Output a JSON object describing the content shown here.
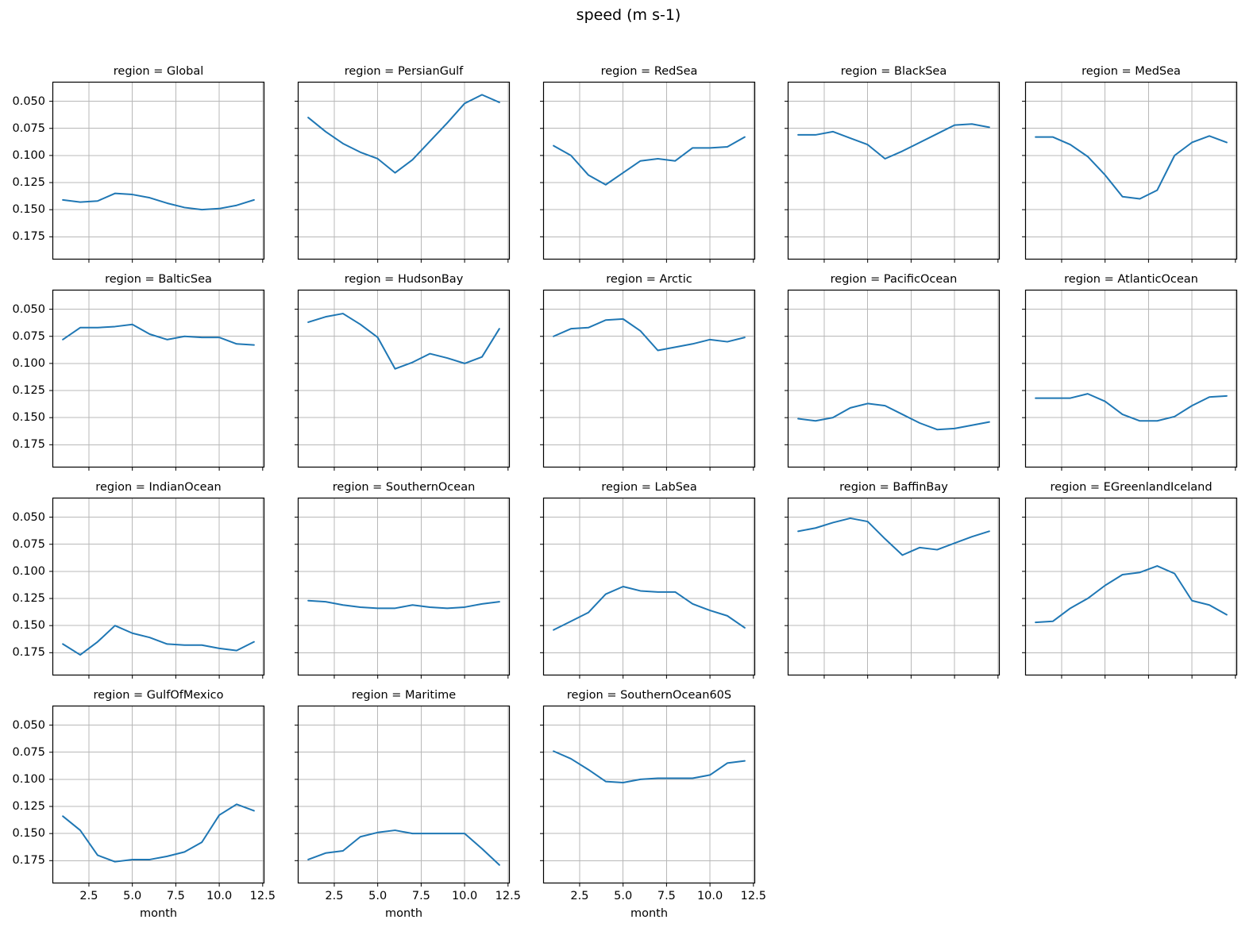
{
  "figure": {
    "suptitle": "speed (m s-1)"
  },
  "chart_data": {
    "type": "line",
    "title": "speed (m s-1)",
    "xlabel": "month",
    "facet_title_prefix": "region = ",
    "x": [
      1,
      2,
      3,
      4,
      5,
      6,
      7,
      8,
      9,
      10,
      11,
      12
    ],
    "x_tick_labels": [
      "2.5",
      "5.0",
      "7.5",
      "10.0",
      "12.5"
    ],
    "x_tick_values": [
      2.5,
      5.0,
      7.5,
      10.0,
      12.5
    ],
    "y_tick_labels": [
      "0.050",
      "0.075",
      "0.100",
      "0.125",
      "0.150",
      "0.175"
    ],
    "y_tick_values": [
      0.05,
      0.075,
      0.1,
      0.125,
      0.15,
      0.175
    ],
    "y_axis_inverted": true,
    "ylim": [
      0.032,
      0.196
    ],
    "xlim": [
      0.4,
      12.6
    ],
    "grid": true,
    "line_color": "#1f77b4",
    "grid_color": "#b8b8b8",
    "facets": [
      {
        "region": "Global",
        "values": [
          0.141,
          0.143,
          0.142,
          0.135,
          0.136,
          0.139,
          0.144,
          0.148,
          0.15,
          0.149,
          0.146,
          0.141
        ]
      },
      {
        "region": "PersianGulf",
        "values": [
          0.065,
          0.078,
          0.089,
          0.097,
          0.103,
          0.116,
          0.104,
          0.087,
          0.07,
          0.052,
          0.044,
          0.051
        ]
      },
      {
        "region": "RedSea",
        "values": [
          0.091,
          0.1,
          0.118,
          0.127,
          0.116,
          0.105,
          0.103,
          0.105,
          0.093,
          0.093,
          0.092,
          0.083
        ]
      },
      {
        "region": "BlackSea",
        "values": [
          0.081,
          0.081,
          0.078,
          0.084,
          0.09,
          0.103,
          0.096,
          0.088,
          0.08,
          0.072,
          0.071,
          0.074
        ]
      },
      {
        "region": "MedSea",
        "values": [
          0.083,
          0.083,
          0.09,
          0.101,
          0.118,
          0.138,
          0.14,
          0.132,
          0.1,
          0.088,
          0.082,
          0.088
        ]
      },
      {
        "region": "BalticSea",
        "values": [
          0.078,
          0.067,
          0.067,
          0.066,
          0.064,
          0.073,
          0.078,
          0.075,
          0.076,
          0.076,
          0.082,
          0.083
        ]
      },
      {
        "region": "HudsonBay",
        "values": [
          0.062,
          0.057,
          0.054,
          0.064,
          0.076,
          0.105,
          0.099,
          0.091,
          0.095,
          0.1,
          0.094,
          0.068
        ]
      },
      {
        "region": "Arctic",
        "values": [
          0.075,
          0.068,
          0.067,
          0.06,
          0.059,
          0.07,
          0.088,
          0.085,
          0.082,
          0.078,
          0.08,
          0.076
        ]
      },
      {
        "region": "PacificOcean",
        "values": [
          0.151,
          0.153,
          0.15,
          0.141,
          0.137,
          0.139,
          0.147,
          0.155,
          0.161,
          0.16,
          0.157,
          0.154
        ]
      },
      {
        "region": "AtlanticOcean",
        "values": [
          0.132,
          0.132,
          0.132,
          0.128,
          0.135,
          0.147,
          0.153,
          0.153,
          0.149,
          0.139,
          0.131,
          0.13
        ]
      },
      {
        "region": "IndianOcean",
        "values": [
          0.167,
          0.177,
          0.165,
          0.15,
          0.157,
          0.161,
          0.167,
          0.168,
          0.168,
          0.171,
          0.173,
          0.165
        ]
      },
      {
        "region": "SouthernOcean",
        "values": [
          0.127,
          0.128,
          0.131,
          0.133,
          0.134,
          0.134,
          0.131,
          0.133,
          0.134,
          0.133,
          0.13,
          0.128
        ]
      },
      {
        "region": "LabSea",
        "values": [
          0.154,
          0.146,
          0.138,
          0.121,
          0.114,
          0.118,
          0.119,
          0.119,
          0.13,
          0.136,
          0.141,
          0.152
        ]
      },
      {
        "region": "BaffinBay",
        "values": [
          0.063,
          0.06,
          0.055,
          0.051,
          0.054,
          0.07,
          0.085,
          0.078,
          0.08,
          0.074,
          0.068,
          0.063
        ]
      },
      {
        "region": "EGreenlandIceland",
        "values": [
          0.147,
          0.146,
          0.134,
          0.125,
          0.113,
          0.103,
          0.101,
          0.095,
          0.102,
          0.127,
          0.131,
          0.14
        ]
      },
      {
        "region": "GulfOfMexico",
        "values": [
          0.134,
          0.147,
          0.17,
          0.176,
          0.174,
          0.174,
          0.171,
          0.167,
          0.158,
          0.133,
          0.123,
          0.129
        ]
      },
      {
        "region": "Maritime",
        "values": [
          0.174,
          0.168,
          0.166,
          0.153,
          0.149,
          0.147,
          0.15,
          0.15,
          0.15,
          0.15,
          0.164,
          0.179
        ]
      },
      {
        "region": "SouthernOcean60S",
        "values": [
          0.074,
          0.081,
          0.091,
          0.102,
          0.103,
          0.1,
          0.099,
          0.099,
          0.099,
          0.096,
          0.085,
          0.083
        ]
      }
    ],
    "x_labeled_facets": [
      "GulfOfMexico",
      "Maritime",
      "SouthernOcean60S"
    ],
    "y_labeled_facets": [
      "Global",
      "BalticSea",
      "IndianOcean",
      "GulfOfMexico"
    ]
  }
}
